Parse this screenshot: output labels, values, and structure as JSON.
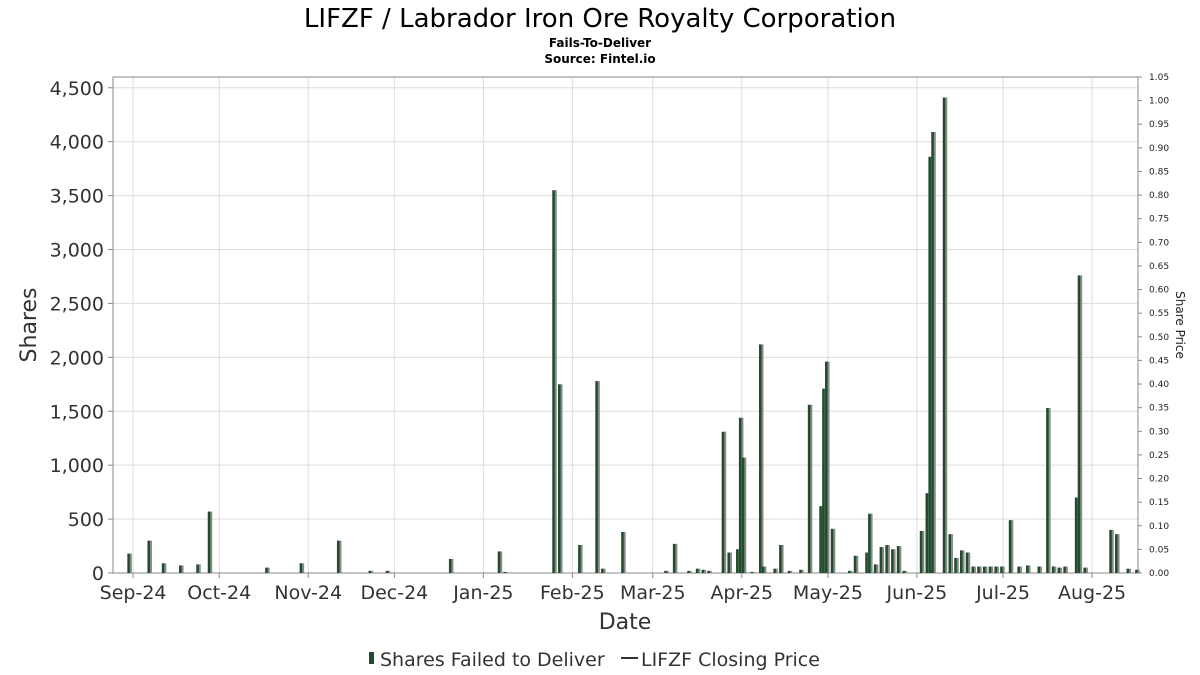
{
  "header": {
    "title": "LIFZF / Labrador Iron Ore Royalty Corporation",
    "subtitle": "Fails-To-Deliver",
    "source": "Source: Fintel.io"
  },
  "legend": {
    "ftd_label": "Shares Failed to Deliver",
    "price_label": "LIFZF Closing Price"
  },
  "colors": {
    "ftd_bar": "#1f4d2b",
    "ftd_shadow": "#8a8a8a",
    "price_line": "#333333",
    "grid": "#dddddd",
    "frame": "#888888"
  },
  "chart_data": {
    "type": "bar",
    "xlabel": "Date",
    "ylabel": "Shares",
    "y2label": "Share Price",
    "ylim": [
      0,
      4600
    ],
    "y2lim": [
      0,
      1.05
    ],
    "xlim": [
      "2024-09-08",
      "2025-08-31"
    ],
    "grid": true,
    "legend_position": "bottom",
    "yticks": [
      0,
      500,
      1000,
      1500,
      2000,
      2500,
      3000,
      3500,
      4000,
      4500
    ],
    "ytick_labels": [
      "0",
      "500",
      "1,000",
      "1,500",
      "2,000",
      "2,500",
      "3,000",
      "3,500",
      "4,000",
      "4,500"
    ],
    "y2ticks": [
      0,
      0.05,
      0.1,
      0.15,
      0.2,
      0.25,
      0.3,
      0.35,
      0.4,
      0.45,
      0.5,
      0.55,
      0.6,
      0.65,
      0.7,
      0.75,
      0.8,
      0.85,
      0.9,
      0.95,
      1.0,
      1.05
    ],
    "y2tick_labels": [
      "0.00",
      "0.05",
      "0.10",
      "0.15",
      "0.20",
      "0.25",
      "0.30",
      "0.35",
      "0.40",
      "0.45",
      "0.50",
      "0.55",
      "0.60",
      "0.65",
      "0.70",
      "0.75",
      "0.80",
      "0.85",
      "0.90",
      "0.95",
      "1.00",
      "1.05"
    ],
    "xticks": [
      {
        "date": "2024-09-15",
        "label": "Sep-24"
      },
      {
        "date": "2024-10-15",
        "label": "Oct-24"
      },
      {
        "date": "2024-11-15",
        "label": "Nov-24"
      },
      {
        "date": "2024-12-15",
        "label": "Dec-24"
      },
      {
        "date": "2025-01-15",
        "label": "Jan-25"
      },
      {
        "date": "2025-02-15",
        "label": "Feb-25"
      },
      {
        "date": "2025-03-15",
        "label": "Mar-25"
      },
      {
        "date": "2025-04-15",
        "label": "Apr-25"
      },
      {
        "date": "2025-05-15",
        "label": "May-25"
      },
      {
        "date": "2025-06-15",
        "label": "Jun-25"
      },
      {
        "date": "2025-07-15",
        "label": "Jul-25"
      },
      {
        "date": "2025-08-15",
        "label": "Aug-25"
      }
    ],
    "series": [
      {
        "name": "Shares Failed to Deliver",
        "type": "bar",
        "axis": "left",
        "points": [
          {
            "date": "2024-09-13",
            "value": 180
          },
          {
            "date": "2024-09-20",
            "value": 300
          },
          {
            "date": "2024-09-25",
            "value": 90
          },
          {
            "date": "2024-10-01",
            "value": 70
          },
          {
            "date": "2024-10-07",
            "value": 80
          },
          {
            "date": "2024-10-11",
            "value": 570
          },
          {
            "date": "2024-10-31",
            "value": 50
          },
          {
            "date": "2024-11-12",
            "value": 90
          },
          {
            "date": "2024-11-25",
            "value": 300
          },
          {
            "date": "2024-12-06",
            "value": 20
          },
          {
            "date": "2024-12-12",
            "value": 20
          },
          {
            "date": "2025-01-03",
            "value": 130
          },
          {
            "date": "2025-01-20",
            "value": 200
          },
          {
            "date": "2025-01-22",
            "value": 10
          },
          {
            "date": "2025-02-08",
            "value": 3550
          },
          {
            "date": "2025-02-10",
            "value": 1750
          },
          {
            "date": "2025-02-17",
            "value": 260
          },
          {
            "date": "2025-02-23",
            "value": 1780
          },
          {
            "date": "2025-02-25",
            "value": 40
          },
          {
            "date": "2025-03-04",
            "value": 380
          },
          {
            "date": "2025-03-19",
            "value": 20
          },
          {
            "date": "2025-03-22",
            "value": 270
          },
          {
            "date": "2025-03-27",
            "value": 20
          },
          {
            "date": "2025-03-30",
            "value": 40
          },
          {
            "date": "2025-04-01",
            "value": 30
          },
          {
            "date": "2025-04-03",
            "value": 20
          },
          {
            "date": "2025-04-08",
            "value": 1310
          },
          {
            "date": "2025-04-10",
            "value": 190
          },
          {
            "date": "2025-04-13",
            "value": 220
          },
          {
            "date": "2025-04-14",
            "value": 1440
          },
          {
            "date": "2025-04-15",
            "value": 1070
          },
          {
            "date": "2025-04-18",
            "value": 10
          },
          {
            "date": "2025-04-21",
            "value": 2120
          },
          {
            "date": "2025-04-22",
            "value": 60
          },
          {
            "date": "2025-04-26",
            "value": 40
          },
          {
            "date": "2025-04-28",
            "value": 260
          },
          {
            "date": "2025-05-01",
            "value": 20
          },
          {
            "date": "2025-05-05",
            "value": 30
          },
          {
            "date": "2025-05-08",
            "value": 1560
          },
          {
            "date": "2025-05-12",
            "value": 620
          },
          {
            "date": "2025-05-13",
            "value": 1710
          },
          {
            "date": "2025-05-14",
            "value": 1960
          },
          {
            "date": "2025-05-16",
            "value": 410
          },
          {
            "date": "2025-05-22",
            "value": 20
          },
          {
            "date": "2025-05-24",
            "value": 160
          },
          {
            "date": "2025-05-28",
            "value": 190
          },
          {
            "date": "2025-05-29",
            "value": 550
          },
          {
            "date": "2025-05-31",
            "value": 80
          },
          {
            "date": "2025-06-02",
            "value": 240
          },
          {
            "date": "2025-06-04",
            "value": 260
          },
          {
            "date": "2025-06-06",
            "value": 220
          },
          {
            "date": "2025-06-08",
            "value": 250
          },
          {
            "date": "2025-06-10",
            "value": 20
          },
          {
            "date": "2025-06-16",
            "value": 390
          },
          {
            "date": "2025-06-18",
            "value": 740
          },
          {
            "date": "2025-06-19",
            "value": 3860
          },
          {
            "date": "2025-06-20",
            "value": 4090
          },
          {
            "date": "2025-06-24",
            "value": 4410
          },
          {
            "date": "2025-06-26",
            "value": 360
          },
          {
            "date": "2025-06-28",
            "value": 140
          },
          {
            "date": "2025-06-30",
            "value": 210
          },
          {
            "date": "2025-07-02",
            "value": 190
          },
          {
            "date": "2025-07-04",
            "value": 60
          },
          {
            "date": "2025-07-06",
            "value": 60
          },
          {
            "date": "2025-07-08",
            "value": 60
          },
          {
            "date": "2025-07-10",
            "value": 60
          },
          {
            "date": "2025-07-12",
            "value": 60
          },
          {
            "date": "2025-07-14",
            "value": 60
          },
          {
            "date": "2025-07-17",
            "value": 490
          },
          {
            "date": "2025-07-20",
            "value": 60
          },
          {
            "date": "2025-07-23",
            "value": 70
          },
          {
            "date": "2025-07-27",
            "value": 60
          },
          {
            "date": "2025-07-30",
            "value": 1530
          },
          {
            "date": "2025-08-01",
            "value": 60
          },
          {
            "date": "2025-08-03",
            "value": 50
          },
          {
            "date": "2025-08-05",
            "value": 60
          },
          {
            "date": "2025-08-09",
            "value": 700
          },
          {
            "date": "2025-08-10",
            "value": 2760
          },
          {
            "date": "2025-08-12",
            "value": 50
          },
          {
            "date": "2025-08-21",
            "value": 400
          },
          {
            "date": "2025-08-23",
            "value": 360
          },
          {
            "date": "2025-08-27",
            "value": 40
          },
          {
            "date": "2025-08-30",
            "value": 30
          }
        ]
      },
      {
        "name": "LIFZF Closing Price",
        "type": "line",
        "axis": "right",
        "points": []
      }
    ]
  }
}
